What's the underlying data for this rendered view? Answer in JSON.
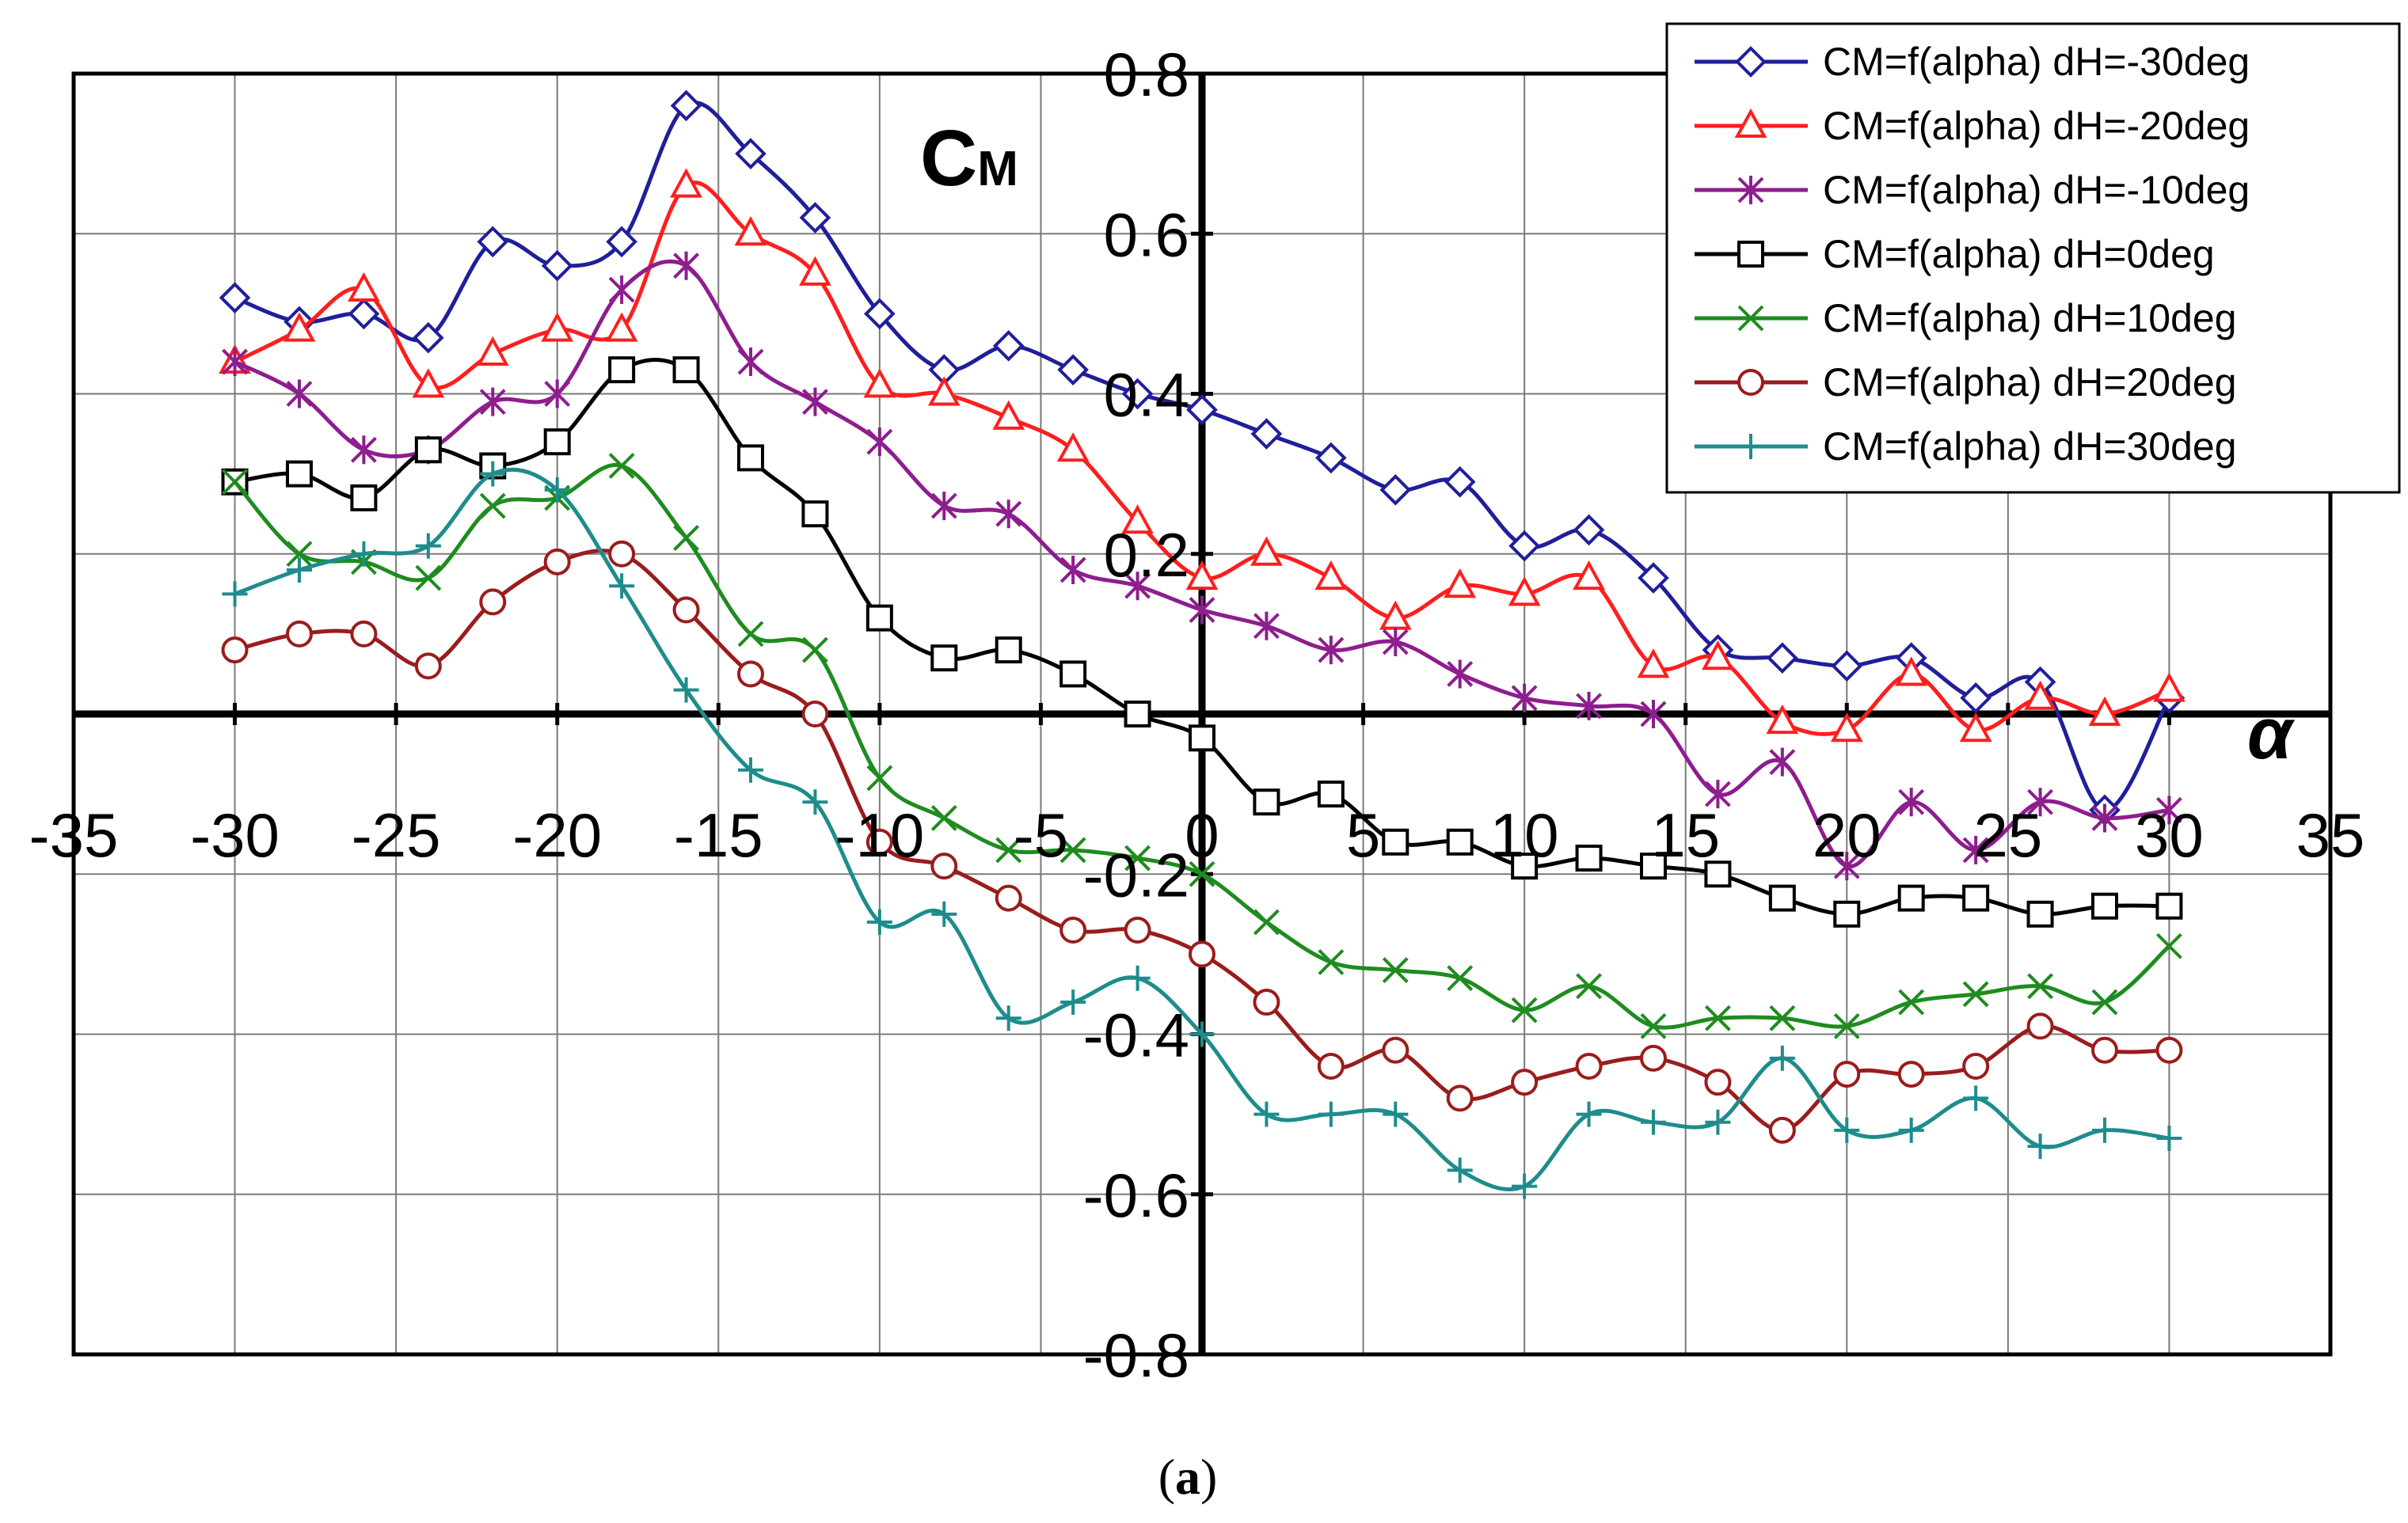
{
  "chart_data": {
    "type": "line",
    "title": "",
    "xlabel": "α",
    "ylabel_main": "C",
    "ylabel_sub": "M",
    "caption_open": "(",
    "caption_letter": "a",
    "caption_close": ")",
    "xlim": [
      -35,
      35
    ],
    "ylim": [
      -0.8,
      0.8
    ],
    "x_ticks": [
      -35,
      -30,
      -25,
      -20,
      -15,
      -10,
      -5,
      0,
      5,
      10,
      15,
      20,
      25,
      30,
      35
    ],
    "x_tick_labels": [
      "-35",
      "-30",
      "-25",
      "-20",
      "-15",
      "-10",
      "-5",
      "0",
      "5",
      "10",
      "15",
      "20",
      "25",
      "30",
      "35"
    ],
    "y_ticks": [
      -0.8,
      -0.6,
      -0.4,
      -0.2,
      0.2,
      0.4,
      0.6,
      0.8
    ],
    "y_tick_labels": [
      "-0.8",
      "-0.6",
      "-0.4",
      "-0.2",
      "0.2",
      "0.4",
      "0.6",
      "0.8"
    ],
    "grid": true,
    "legend_position": "top-right",
    "x": [
      -30,
      -28,
      -26,
      -24,
      -22,
      -20,
      -18,
      -16,
      -14,
      -12,
      -10,
      -8,
      -6,
      -4,
      -2,
      0,
      2,
      4,
      6,
      8,
      10,
      12,
      14,
      16,
      18,
      20,
      22,
      24,
      26,
      28,
      30
    ],
    "series": [
      {
        "name": "CM=f(alpha) dH=-30deg",
        "color": "#1f1f9a",
        "marker": "diamond",
        "values": [
          0.52,
          0.49,
          0.5,
          0.47,
          0.59,
          0.56,
          0.59,
          0.76,
          0.7,
          0.62,
          0.5,
          0.43,
          0.46,
          0.43,
          0.4,
          0.38,
          0.35,
          0.32,
          0.28,
          0.29,
          0.21,
          0.23,
          0.17,
          0.08,
          0.07,
          0.06,
          0.07,
          0.02,
          0.04,
          -0.12,
          0.02
        ]
      },
      {
        "name": "CM=f(alpha) dH=-20deg",
        "color": "#ff1e1e",
        "marker": "triangle",
        "values": [
          0.44,
          0.48,
          0.53,
          0.41,
          0.45,
          0.48,
          0.48,
          0.66,
          0.6,
          0.55,
          0.41,
          0.4,
          0.37,
          0.33,
          0.24,
          0.17,
          0.2,
          0.17,
          0.12,
          0.16,
          0.15,
          0.17,
          0.06,
          0.07,
          -0.01,
          -0.02,
          0.05,
          -0.02,
          0.02,
          0.0,
          0.03
        ]
      },
      {
        "name": "CM=f(alpha) dH=-10deg",
        "color": "#8e1d8e",
        "marker": "asterisk",
        "values": [
          0.44,
          0.4,
          0.33,
          0.33,
          0.39,
          0.4,
          0.53,
          0.56,
          0.44,
          0.39,
          0.34,
          0.26,
          0.25,
          0.18,
          0.16,
          0.13,
          0.11,
          0.08,
          0.09,
          0.05,
          0.02,
          0.01,
          0.0,
          -0.1,
          -0.06,
          -0.19,
          -0.11,
          -0.17,
          -0.11,
          -0.13,
          -0.12
        ]
      },
      {
        "name": "CM=f(alpha) dH=0deg",
        "color": "#000000",
        "marker": "square",
        "values": [
          0.29,
          0.3,
          0.27,
          0.33,
          0.31,
          0.34,
          0.43,
          0.43,
          0.32,
          0.25,
          0.12,
          0.07,
          0.08,
          0.05,
          0.0,
          -0.03,
          -0.11,
          -0.1,
          -0.16,
          -0.16,
          -0.19,
          -0.18,
          -0.19,
          -0.2,
          -0.23,
          -0.25,
          -0.23,
          -0.23,
          -0.25,
          -0.24,
          -0.24
        ]
      },
      {
        "name": "CM=f(alpha) dH=10deg",
        "color": "#1e8c1e",
        "marker": "x",
        "values": [
          0.29,
          0.2,
          0.19,
          0.17,
          0.26,
          0.27,
          0.31,
          0.22,
          0.1,
          0.08,
          -0.08,
          -0.13,
          -0.17,
          -0.17,
          -0.18,
          -0.2,
          -0.26,
          -0.31,
          -0.32,
          -0.33,
          -0.37,
          -0.34,
          -0.39,
          -0.38,
          -0.38,
          -0.39,
          -0.36,
          -0.35,
          -0.34,
          -0.36,
          -0.29
        ]
      },
      {
        "name": "CM=f(alpha) dH=20deg",
        "color": "#9b1c1c",
        "marker": "circle",
        "values": [
          0.08,
          0.1,
          0.1,
          0.06,
          0.14,
          0.19,
          0.2,
          0.13,
          0.05,
          0.0,
          -0.16,
          -0.19,
          -0.23,
          -0.27,
          -0.27,
          -0.3,
          -0.36,
          -0.44,
          -0.42,
          -0.48,
          -0.46,
          -0.44,
          -0.43,
          -0.46,
          -0.52,
          -0.45,
          -0.45,
          -0.44,
          -0.39,
          -0.42,
          -0.42
        ]
      },
      {
        "name": "CM=f(alpha) dH=30deg",
        "color": "#1e8c8c",
        "marker": "plus",
        "values": [
          0.15,
          0.18,
          0.2,
          0.21,
          0.3,
          0.28,
          0.16,
          0.03,
          -0.07,
          -0.11,
          -0.26,
          -0.25,
          -0.38,
          -0.36,
          -0.33,
          -0.4,
          -0.5,
          -0.5,
          -0.5,
          -0.57,
          -0.59,
          -0.5,
          -0.51,
          -0.51,
          -0.43,
          -0.52,
          -0.52,
          -0.48,
          -0.54,
          -0.52,
          -0.53
        ]
      }
    ]
  }
}
